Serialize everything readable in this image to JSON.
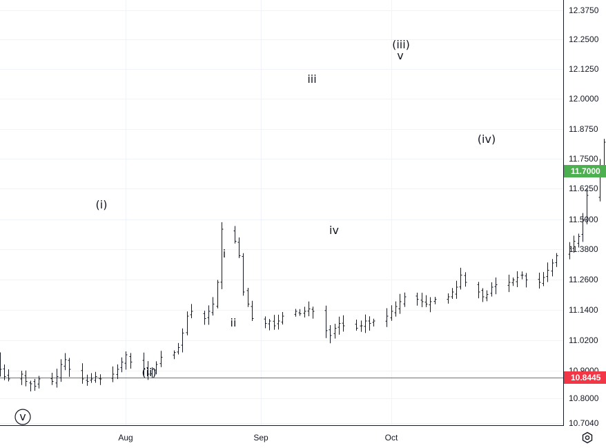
{
  "colors": {
    "up": "#26a69a",
    "down": "#ef5350",
    "bar": "#131722",
    "grid": "#f0f3fa",
    "last_price_tag": "#4caf50",
    "level_line": "#f23645"
  },
  "icons": {
    "settings": "gear-icon"
  },
  "chart_data": {
    "type": "ohlc",
    "y_axis": {
      "ticks": [
        "12.3750",
        "12.2500",
        "12.1250",
        "12.0000",
        "11.8750",
        "11.7500",
        "11.6250",
        "11.5000",
        "11.3800",
        "11.2600",
        "11.1400",
        "11.0200",
        "10.9000",
        "10.8000",
        "10.7040"
      ],
      "ylim": [
        10.7,
        12.4
      ]
    },
    "x_axis": {
      "ticks": [
        "Aug",
        "Sep",
        "Oct"
      ]
    },
    "last_price": {
      "label": "11.7000",
      "value": 11.7
    },
    "horizontal_level": {
      "label": "10.8445",
      "value": 10.8445
    },
    "close_series": {
      "start": "2024-07-01",
      "closes": [
        10.97,
        10.94,
        10.88,
        10.85,
        10.84,
        10.86,
        10.83,
        10.82,
        10.81,
        10.84,
        10.83,
        10.85,
        10.9,
        10.92,
        10.88,
        10.84,
        10.83,
        10.84,
        10.85,
        10.84,
        10.86,
        10.88,
        10.91,
        10.94,
        10.91,
        10.88,
        10.86,
        10.88,
        10.9,
        10.93,
        10.95,
        10.97,
        11.03,
        11.1,
        11.12,
        11.09,
        11.12,
        11.15,
        11.24,
        11.46,
        11.41,
        11.35,
        11.2,
        11.15,
        11.09,
        11.07,
        11.08,
        11.06,
        11.08,
        11.1,
        11.12,
        11.11,
        11.12,
        11.13,
        11.12,
        11.04,
        11.02,
        11.05,
        11.07,
        11.06,
        11.05,
        11.06,
        11.08,
        11.07,
        11.08,
        11.1,
        11.12,
        11.14,
        11.16,
        11.18,
        11.17,
        11.16,
        11.15,
        11.16,
        11.17,
        11.18,
        11.2,
        11.22,
        11.27,
        11.24,
        11.2,
        11.18,
        11.19,
        11.22,
        11.23,
        11.24,
        11.25,
        11.26,
        11.27,
        11.25,
        11.24,
        11.26,
        11.29,
        11.32,
        11.35,
        11.38,
        11.41,
        11.43,
        11.5,
        11.6,
        11.72,
        11.82,
        11.93,
        11.88,
        11.9,
        11.95,
        11.92,
        11.82,
        11.72,
        11.65,
        11.55,
        11.58,
        11.63,
        11.66,
        11.64,
        11.68,
        11.7,
        11.67,
        11.7
      ]
    },
    "wave_labels": [
      {
        "text": "v",
        "circled": true
      },
      {
        "text": "(i)"
      },
      {
        "text": "(ii)"
      },
      {
        "text": "i"
      },
      {
        "text": "ii"
      },
      {
        "text": "iii"
      },
      {
        "text": "iv"
      },
      {
        "text": "(iii)"
      },
      {
        "text": "v"
      },
      {
        "text": "(iv)"
      }
    ]
  }
}
